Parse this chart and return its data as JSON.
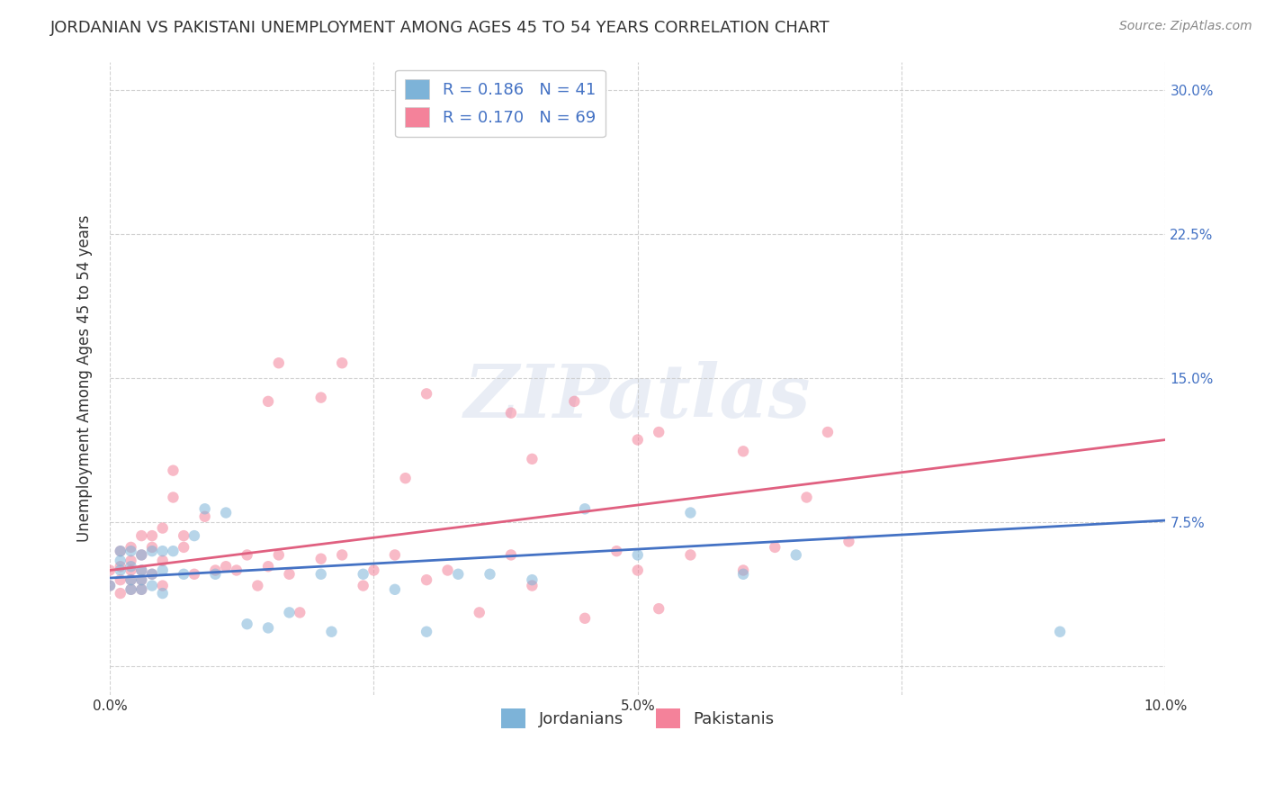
{
  "title": "JORDANIAN VS PAKISTANI UNEMPLOYMENT AMONG AGES 45 TO 54 YEARS CORRELATION CHART",
  "source": "Source: ZipAtlas.com",
  "ylabel": "Unemployment Among Ages 45 to 54 years",
  "xlim": [
    0.0,
    0.1
  ],
  "ylim": [
    -0.015,
    0.315
  ],
  "xticks": [
    0.0,
    0.025,
    0.05,
    0.075,
    0.1
  ],
  "xtick_labels": [
    "0.0%",
    "",
    "5.0%",
    "",
    "10.0%"
  ],
  "ytick_positions": [
    0.0,
    0.075,
    0.15,
    0.225,
    0.3
  ],
  "ytick_labels_right": [
    "",
    "7.5%",
    "15.0%",
    "22.5%",
    "30.0%"
  ],
  "grid_color": "#cccccc",
  "background_color": "#ffffff",
  "watermark": "ZIPatlas",
  "jordanian_color": "#7db3d8",
  "pakistani_color": "#f4829a",
  "trend_jordan_color": "#4472c4",
  "trend_pakistan_color": "#e06080",
  "jordanian_x": [
    0.0,
    0.001,
    0.001,
    0.001,
    0.002,
    0.002,
    0.002,
    0.002,
    0.003,
    0.003,
    0.003,
    0.003,
    0.004,
    0.004,
    0.004,
    0.005,
    0.005,
    0.005,
    0.006,
    0.007,
    0.008,
    0.009,
    0.01,
    0.011,
    0.013,
    0.015,
    0.017,
    0.02,
    0.021,
    0.024,
    0.027,
    0.03,
    0.033,
    0.036,
    0.04,
    0.045,
    0.05,
    0.055,
    0.06,
    0.065,
    0.09
  ],
  "jordanian_y": [
    0.042,
    0.05,
    0.055,
    0.06,
    0.04,
    0.045,
    0.052,
    0.06,
    0.04,
    0.045,
    0.05,
    0.058,
    0.042,
    0.048,
    0.06,
    0.038,
    0.05,
    0.06,
    0.06,
    0.048,
    0.068,
    0.082,
    0.048,
    0.08,
    0.022,
    0.02,
    0.028,
    0.048,
    0.018,
    0.048,
    0.04,
    0.018,
    0.048,
    0.048,
    0.045,
    0.082,
    0.058,
    0.08,
    0.048,
    0.058,
    0.018
  ],
  "pakistani_x": [
    0.0,
    0.0,
    0.001,
    0.001,
    0.001,
    0.001,
    0.002,
    0.002,
    0.002,
    0.002,
    0.002,
    0.003,
    0.003,
    0.003,
    0.003,
    0.003,
    0.004,
    0.004,
    0.004,
    0.005,
    0.005,
    0.005,
    0.006,
    0.006,
    0.007,
    0.007,
    0.008,
    0.009,
    0.01,
    0.011,
    0.012,
    0.013,
    0.014,
    0.015,
    0.016,
    0.017,
    0.018,
    0.02,
    0.022,
    0.024,
    0.025,
    0.027,
    0.03,
    0.032,
    0.035,
    0.038,
    0.04,
    0.045,
    0.048,
    0.05,
    0.052,
    0.055,
    0.06,
    0.063,
    0.066,
    0.07,
    0.016,
    0.022,
    0.03,
    0.038,
    0.044,
    0.052,
    0.06,
    0.068,
    0.015,
    0.02,
    0.028,
    0.04,
    0.05
  ],
  "pakistani_y": [
    0.042,
    0.05,
    0.038,
    0.045,
    0.052,
    0.06,
    0.04,
    0.045,
    0.05,
    0.055,
    0.062,
    0.04,
    0.045,
    0.05,
    0.058,
    0.068,
    0.048,
    0.062,
    0.068,
    0.042,
    0.055,
    0.072,
    0.088,
    0.102,
    0.062,
    0.068,
    0.048,
    0.078,
    0.05,
    0.052,
    0.05,
    0.058,
    0.042,
    0.052,
    0.058,
    0.048,
    0.028,
    0.056,
    0.058,
    0.042,
    0.05,
    0.058,
    0.045,
    0.05,
    0.028,
    0.058,
    0.042,
    0.025,
    0.06,
    0.05,
    0.03,
    0.058,
    0.05,
    0.062,
    0.088,
    0.065,
    0.158,
    0.158,
    0.142,
    0.132,
    0.138,
    0.122,
    0.112,
    0.122,
    0.138,
    0.14,
    0.098,
    0.108,
    0.118
  ],
  "jordan_trend_x": [
    0.0,
    0.1
  ],
  "jordan_trend_y": [
    0.046,
    0.076
  ],
  "pakistan_trend_x": [
    0.0,
    0.1
  ],
  "pakistan_trend_y": [
    0.05,
    0.118
  ],
  "marker_size": 80,
  "marker_alpha": 0.55,
  "title_fontsize": 13,
  "source_fontsize": 10,
  "axis_label_fontsize": 12,
  "tick_fontsize": 11,
  "legend_fontsize": 13,
  "watermark_fontsize": 60,
  "ytick_color": "#4472c4",
  "xtick_color": "#333333",
  "title_color": "#333333",
  "source_color": "#888888"
}
